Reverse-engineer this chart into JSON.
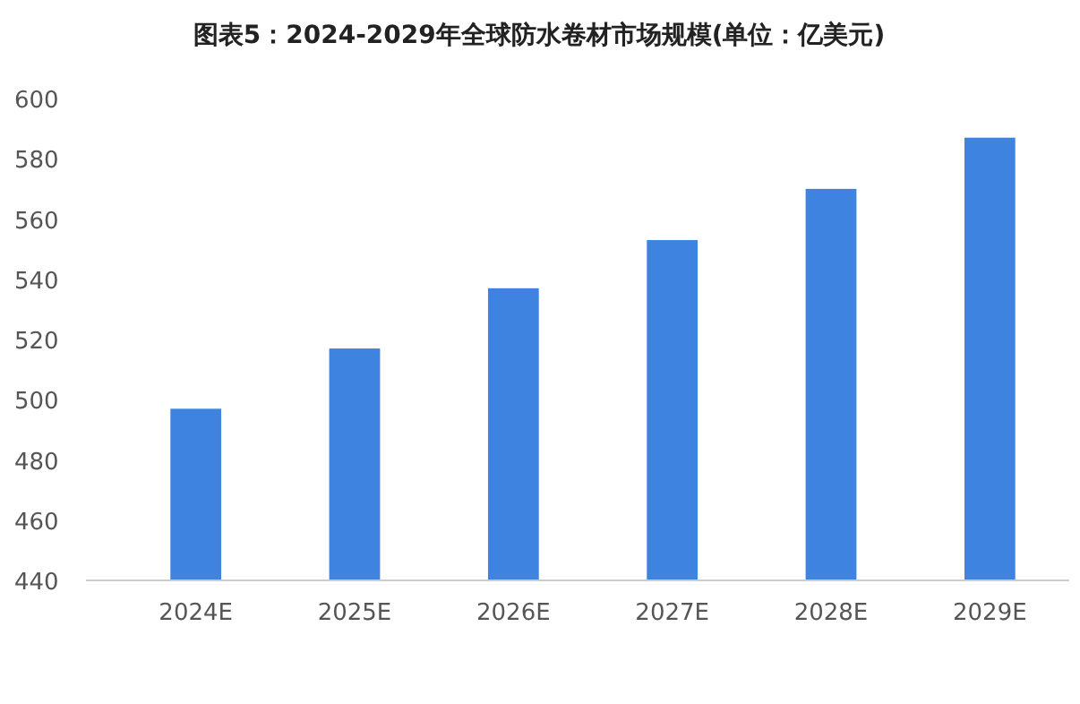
{
  "chart_data": {
    "type": "bar",
    "title": "图表5：2024-2029年全球防水卷材市场规模(单位：亿美元)",
    "categories": [
      "2024E",
      "2025E",
      "2026E",
      "2027E",
      "2028E",
      "2029E"
    ],
    "values": [
      497,
      517,
      537,
      553,
      570,
      587
    ],
    "color": "#3f83e0",
    "ylim": [
      440,
      600
    ],
    "yticks": [
      440,
      460,
      480,
      500,
      520,
      540,
      560,
      580,
      600
    ]
  }
}
